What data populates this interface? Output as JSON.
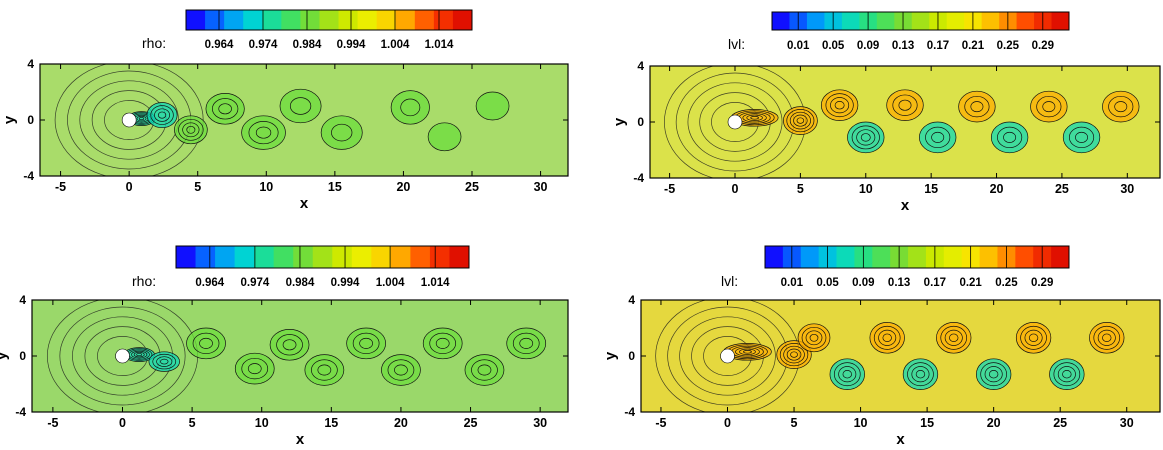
{
  "chart_data": [
    {
      "type": "heatmap",
      "legend_prefix": "rho:",
      "legend_ticks": [
        "0.964",
        "0.974",
        "0.984",
        "0.994",
        "1.004",
        "1.014"
      ],
      "colorbar_levels": 15,
      "colormap": [
        "#1010ff",
        "#0090ff",
        "#00d8d0",
        "#30e070",
        "#7ddc30",
        "#c8e800",
        "#f5f000",
        "#ffb000",
        "#ff4000",
        "#e01000"
      ],
      "field_color": "#a9dc6a",
      "xlabel": "x",
      "ylabel": "y",
      "xlim": [
        -6.5,
        32
      ],
      "ylim": [
        -4,
        4
      ],
      "xticks": [
        "-5",
        "0",
        "5",
        "10",
        "15",
        "20",
        "25",
        "30"
      ],
      "yticks": [
        "-4",
        "0",
        "4"
      ],
      "obstacle": {
        "x": 0,
        "y": 0,
        "r": 0.5
      },
      "vortices": [
        {
          "x": 0.9,
          "y": 0.1,
          "rx": 1.0,
          "ry": 0.5,
          "rings": 6
        },
        {
          "x": 2.4,
          "y": 0.35,
          "rx": 1.1,
          "ry": 0.9,
          "rings": 4
        },
        {
          "x": 4.5,
          "y": -0.7,
          "rx": 1.2,
          "ry": 1.0,
          "rings": 4
        },
        {
          "x": 7.0,
          "y": 0.8,
          "rx": 1.4,
          "ry": 1.1,
          "rings": 3
        },
        {
          "x": 9.8,
          "y": -0.9,
          "rx": 1.6,
          "ry": 1.2,
          "rings": 3
        },
        {
          "x": 12.5,
          "y": 1.0,
          "rx": 1.5,
          "ry": 1.2,
          "rings": 2
        },
        {
          "x": 15.5,
          "y": -0.9,
          "rx": 1.5,
          "ry": 1.2,
          "rings": 2
        },
        {
          "x": 20.5,
          "y": 0.9,
          "rx": 1.4,
          "ry": 1.2,
          "rings": 2
        },
        {
          "x": 23.0,
          "y": -1.2,
          "rx": 1.2,
          "ry": 1.0,
          "rings": 1
        },
        {
          "x": 26.5,
          "y": 1.0,
          "rx": 1.2,
          "ry": 1.0,
          "rings": 1
        }
      ]
    },
    {
      "type": "heatmap",
      "legend_prefix": "lvl:",
      "legend_ticks": [
        "0.01",
        "0.05",
        "0.09",
        "0.13",
        "0.17",
        "0.21",
        "0.25",
        "0.29"
      ],
      "colorbar_levels": 17,
      "colormap": [
        "#1010ff",
        "#0090ff",
        "#00d8d0",
        "#30e070",
        "#7ddc30",
        "#c8e800",
        "#f5f000",
        "#ffb000",
        "#ff4000",
        "#e01000"
      ],
      "field_color": "#dbe24a",
      "xlabel": "x",
      "ylabel": "y",
      "xlim": [
        -6.5,
        32.5
      ],
      "ylim": [
        -4,
        4
      ],
      "xticks": [
        "-5",
        "0",
        "5",
        "10",
        "15",
        "20",
        "25",
        "30"
      ],
      "yticks": [
        "-4",
        "0",
        "4"
      ],
      "obstacle": {
        "x": 0,
        "y": 0,
        "r": 0.5
      },
      "vortices": [
        {
          "x": 1.5,
          "y": 0.3,
          "rx": 1.8,
          "ry": 0.6,
          "rings": 6
        },
        {
          "x": 5.0,
          "y": 0.1,
          "rx": 1.3,
          "ry": 1.0,
          "rings": 5
        },
        {
          "x": 8.0,
          "y": 1.2,
          "rx": 1.4,
          "ry": 1.1,
          "rings": 4
        },
        {
          "x": 10.0,
          "y": -1.1,
          "rx": 1.4,
          "ry": 1.1,
          "rings": 4
        },
        {
          "x": 13.0,
          "y": 1.2,
          "rx": 1.4,
          "ry": 1.1,
          "rings": 3
        },
        {
          "x": 15.5,
          "y": -1.1,
          "rx": 1.4,
          "ry": 1.1,
          "rings": 3
        },
        {
          "x": 18.5,
          "y": 1.1,
          "rx": 1.4,
          "ry": 1.1,
          "rings": 3
        },
        {
          "x": 21.0,
          "y": -1.1,
          "rx": 1.4,
          "ry": 1.1,
          "rings": 3
        },
        {
          "x": 24.0,
          "y": 1.1,
          "rx": 1.4,
          "ry": 1.1,
          "rings": 3
        },
        {
          "x": 26.5,
          "y": -1.1,
          "rx": 1.4,
          "ry": 1.1,
          "rings": 3
        },
        {
          "x": 29.5,
          "y": 1.1,
          "rx": 1.4,
          "ry": 1.1,
          "rings": 3
        }
      ]
    },
    {
      "type": "heatmap",
      "legend_prefix": "rho:",
      "legend_ticks": [
        "0.964",
        "0.974",
        "0.984",
        "0.994",
        "1.004",
        "1.014"
      ],
      "colorbar_levels": 15,
      "colormap": [
        "#1010ff",
        "#0090ff",
        "#00d8d0",
        "#30e070",
        "#7ddc30",
        "#c8e800",
        "#f5f000",
        "#ffb000",
        "#ff4000",
        "#e01000"
      ],
      "field_color": "#9ad86a",
      "xlabel": "x",
      "ylabel": "y",
      "xlim": [
        -6.5,
        32
      ],
      "ylim": [
        -4,
        4
      ],
      "xticks": [
        "-5",
        "0",
        "5",
        "10",
        "15",
        "20",
        "25",
        "30"
      ],
      "yticks": [
        "-4",
        "0",
        "4"
      ],
      "obstacle": {
        "x": 0,
        "y": 0,
        "r": 0.5
      },
      "vortices": [
        {
          "x": 1.2,
          "y": 0.1,
          "rx": 1.1,
          "ry": 0.5,
          "rings": 6
        },
        {
          "x": 3.0,
          "y": -0.4,
          "rx": 1.1,
          "ry": 0.7,
          "rings": 4
        },
        {
          "x": 6.0,
          "y": 0.9,
          "rx": 1.4,
          "ry": 1.1,
          "rings": 3
        },
        {
          "x": 9.5,
          "y": -0.9,
          "rx": 1.4,
          "ry": 1.1,
          "rings": 3
        },
        {
          "x": 12.0,
          "y": 0.8,
          "rx": 1.4,
          "ry": 1.1,
          "rings": 3
        },
        {
          "x": 14.5,
          "y": -1.0,
          "rx": 1.4,
          "ry": 1.1,
          "rings": 3
        },
        {
          "x": 17.5,
          "y": 0.9,
          "rx": 1.4,
          "ry": 1.1,
          "rings": 3
        },
        {
          "x": 20.0,
          "y": -1.0,
          "rx": 1.4,
          "ry": 1.1,
          "rings": 3
        },
        {
          "x": 23.0,
          "y": 0.9,
          "rx": 1.4,
          "ry": 1.1,
          "rings": 3
        },
        {
          "x": 26.0,
          "y": -1.0,
          "rx": 1.4,
          "ry": 1.1,
          "rings": 3
        },
        {
          "x": 29.0,
          "y": 0.9,
          "rx": 1.4,
          "ry": 1.1,
          "rings": 3
        }
      ]
    },
    {
      "type": "heatmap",
      "legend_prefix": "lvl:",
      "legend_ticks": [
        "0.01",
        "0.05",
        "0.09",
        "0.13",
        "0.17",
        "0.21",
        "0.25",
        "0.29"
      ],
      "colorbar_levels": 17,
      "colormap": [
        "#1010ff",
        "#0090ff",
        "#00d8d0",
        "#30e070",
        "#7ddc30",
        "#c8e800",
        "#f5f000",
        "#ffb000",
        "#ff4000",
        "#e01000"
      ],
      "field_color": "#e5d83e",
      "xlabel": "x",
      "ylabel": "y",
      "xlim": [
        -6.5,
        32.5
      ],
      "ylim": [
        -4,
        4
      ],
      "xticks": [
        "-5",
        "0",
        "5",
        "10",
        "15",
        "20",
        "25",
        "30"
      ],
      "yticks": [
        "-4",
        "0",
        "4"
      ],
      "obstacle": {
        "x": 0,
        "y": 0,
        "r": 0.5
      },
      "vortices": [
        {
          "x": 1.5,
          "y": 0.3,
          "rx": 1.8,
          "ry": 0.6,
          "rings": 6
        },
        {
          "x": 5.0,
          "y": 0.1,
          "rx": 1.3,
          "ry": 1.0,
          "rings": 5
        },
        {
          "x": 6.5,
          "y": 1.3,
          "rx": 1.2,
          "ry": 1.0,
          "rings": 4
        },
        {
          "x": 9.0,
          "y": -1.3,
          "rx": 1.3,
          "ry": 1.1,
          "rings": 4
        },
        {
          "x": 12.0,
          "y": 1.3,
          "rx": 1.3,
          "ry": 1.1,
          "rings": 4
        },
        {
          "x": 14.5,
          "y": -1.3,
          "rx": 1.3,
          "ry": 1.1,
          "rings": 4
        },
        {
          "x": 17.0,
          "y": 1.3,
          "rx": 1.3,
          "ry": 1.1,
          "rings": 4
        },
        {
          "x": 20.0,
          "y": -1.3,
          "rx": 1.3,
          "ry": 1.1,
          "rings": 4
        },
        {
          "x": 23.0,
          "y": 1.3,
          "rx": 1.3,
          "ry": 1.1,
          "rings": 4
        },
        {
          "x": 25.5,
          "y": -1.3,
          "rx": 1.3,
          "ry": 1.1,
          "rings": 4
        },
        {
          "x": 28.5,
          "y": 1.3,
          "rx": 1.3,
          "ry": 1.1,
          "rings": 4
        }
      ]
    }
  ]
}
